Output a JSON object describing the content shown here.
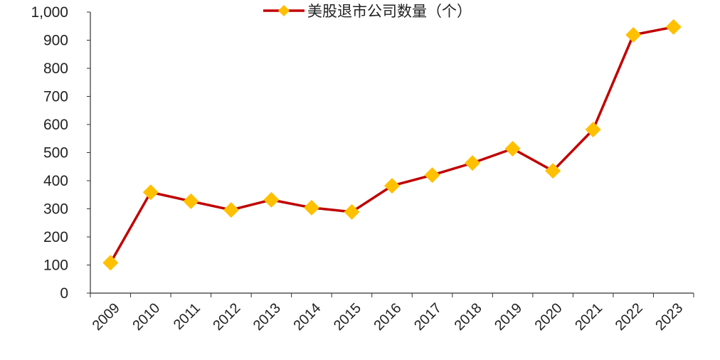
{
  "chart_data": {
    "type": "line",
    "title": "",
    "xlabel": "",
    "ylabel": "",
    "categories": [
      "2009",
      "2010",
      "2011",
      "2012",
      "2013",
      "2014",
      "2015",
      "2016",
      "2017",
      "2018",
      "2019",
      "2020",
      "2021",
      "2022",
      "2023"
    ],
    "series": [
      {
        "name": "美股退市公司数量（个）",
        "values": [
          108,
          359,
          327,
          296,
          332,
          304,
          289,
          382,
          420,
          463,
          514,
          435,
          582,
          919,
          947
        ],
        "line_color": "#c00000",
        "marker_color": "#ffc000",
        "marker": "diamond"
      }
    ],
    "ylim": [
      0,
      1000
    ],
    "yticks": [
      0,
      100,
      200,
      300,
      400,
      500,
      600,
      700,
      800,
      900,
      1000
    ],
    "ytick_labels": [
      "0",
      "100",
      "200",
      "300",
      "400",
      "500",
      "600",
      "700",
      "800",
      "900",
      "1,000"
    ],
    "grid": false,
    "legend": "top-center"
  }
}
